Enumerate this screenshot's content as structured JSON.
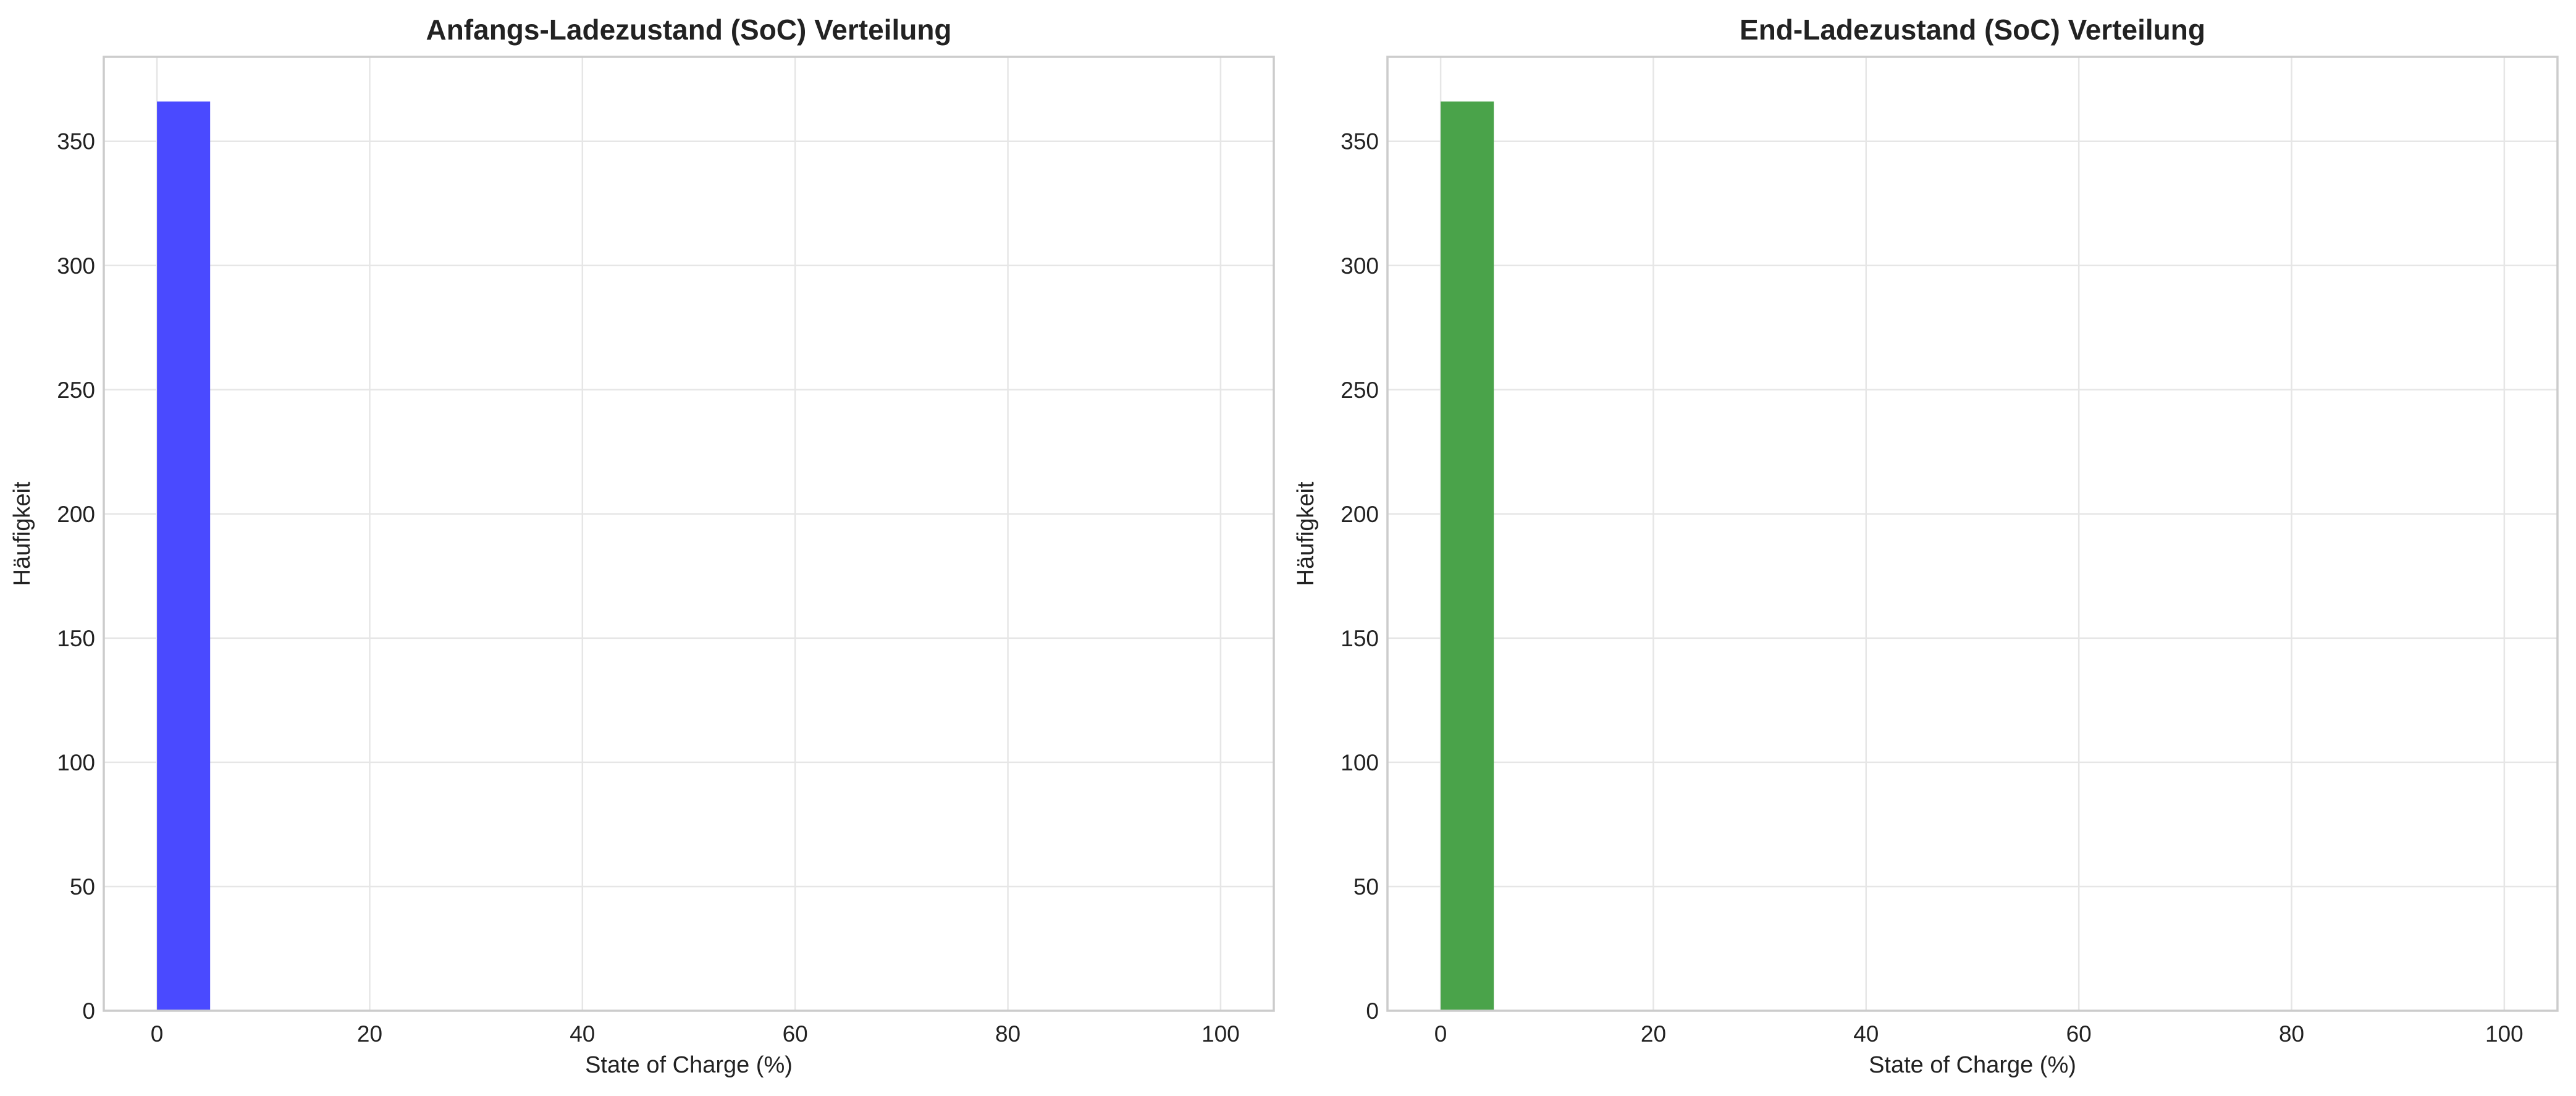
{
  "chart_data": [
    {
      "type": "bar",
      "title": "Anfangs-Ladezustand (SoC) Verteilung",
      "xlabel": "State of Charge (%)",
      "ylabel": "Häufigkeit",
      "xlim": [
        -5,
        105
      ],
      "ylim": [
        0,
        384
      ],
      "xticks": [
        0,
        20,
        40,
        60,
        80,
        100
      ],
      "yticks": [
        0,
        50,
        100,
        150,
        200,
        250,
        300,
        350
      ],
      "bins": [
        {
          "x0": 0,
          "x1": 5,
          "count": 366
        }
      ],
      "color": "#4a4aff",
      "grid": true
    },
    {
      "type": "bar",
      "title": "End-Ladezustand (SoC) Verteilung",
      "xlabel": "State of Charge (%)",
      "ylabel": "Häufigkeit",
      "xlim": [
        -5,
        105
      ],
      "ylim": [
        0,
        384
      ],
      "xticks": [
        0,
        20,
        40,
        60,
        80,
        100
      ],
      "yticks": [
        0,
        50,
        100,
        150,
        200,
        250,
        300,
        350
      ],
      "bins": [
        {
          "x0": 0,
          "x1": 5,
          "count": 366
        }
      ],
      "color": "#4aa34a",
      "grid": true
    }
  ]
}
